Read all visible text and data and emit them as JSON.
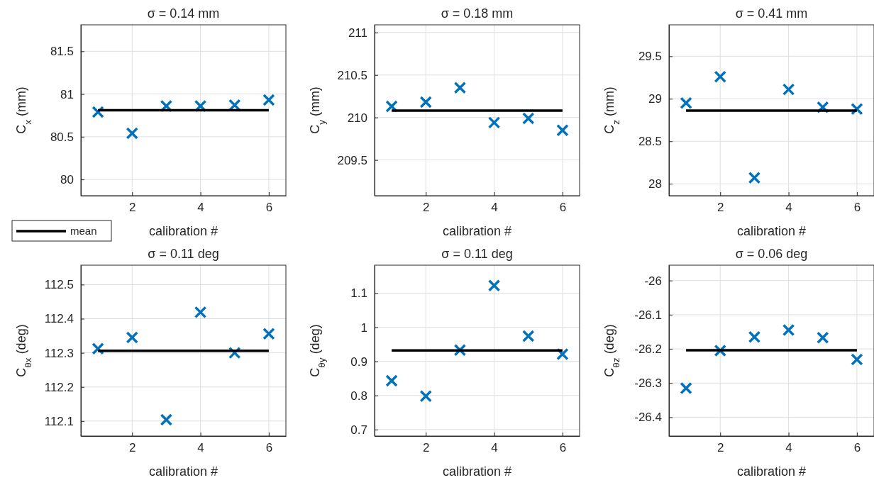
{
  "chart_data": [
    {
      "type": "scatter",
      "title": "σ = 0.14 mm",
      "xlabel": "calibration #",
      "ylabel": "C$_{x}$ (mm)",
      "x": [
        1,
        2,
        3,
        4,
        5,
        6
      ],
      "xlim": [
        0.5,
        6.5
      ],
      "xticks": [
        2,
        4,
        6
      ],
      "ylim": [
        79.81,
        81.81
      ],
      "yticks": [
        80,
        80.5,
        81,
        81.5
      ],
      "grid": true,
      "legend": "bottom left",
      "series": [
        {
          "type": "scatter",
          "color": "#0072bd",
          "marker": "cross",
          "values": [
            80.79,
            80.54,
            80.86,
            80.86,
            80.87,
            80.93
          ]
        },
        {
          "type": "line",
          "name": "mean",
          "color": "#000000",
          "marker": "none",
          "values": [
            80.81,
            80.81,
            80.81,
            80.81,
            80.81,
            80.81
          ]
        }
      ]
    },
    {
      "type": "scatter",
      "title": "σ = 0.18 mm",
      "xlabel": "calibration #",
      "ylabel": "C$_{y}$ (mm)",
      "x": [
        1,
        2,
        3,
        4,
        5,
        6
      ],
      "xlim": [
        0.5,
        6.5
      ],
      "xticks": [
        2,
        4,
        6
      ],
      "ylim": [
        209.08,
        211.09
      ],
      "yticks": [
        209.5,
        210,
        210.5,
        211
      ],
      "grid": true,
      "series": [
        {
          "type": "scatter",
          "color": "#0072bd",
          "marker": "cross",
          "values": [
            210.13,
            210.18,
            210.35,
            209.94,
            209.99,
            209.85
          ]
        },
        {
          "type": "line",
          "color": "#000000",
          "marker": "none",
          "values": [
            210.08,
            210.08,
            210.08,
            210.08,
            210.08,
            210.08
          ]
        }
      ]
    },
    {
      "type": "scatter",
      "title": "σ = 0.41 mm",
      "xlabel": "calibration #",
      "ylabel": "C$_{z}$ (mm)",
      "x": [
        1,
        2,
        3,
        4,
        5,
        6
      ],
      "xlim": [
        0.5,
        6.5
      ],
      "xticks": [
        2,
        4,
        6
      ],
      "ylim": [
        27.86,
        29.87
      ],
      "yticks": [
        28,
        28.5,
        29,
        29.5
      ],
      "grid": true,
      "series": [
        {
          "type": "scatter",
          "color": "#0072bd",
          "marker": "cross",
          "values": [
            28.95,
            29.26,
            28.07,
            29.11,
            28.9,
            28.88
          ]
        },
        {
          "type": "line",
          "color": "#000000",
          "marker": "none",
          "values": [
            28.86,
            28.86,
            28.86,
            28.86,
            28.86,
            28.86
          ]
        }
      ]
    },
    {
      "type": "scatter",
      "title": "σ = 0.11 deg",
      "xlabel": "calibration #",
      "ylabel": "C$_{θx}$ (deg)",
      "x": [
        1,
        2,
        3,
        4,
        5,
        6
      ],
      "xlim": [
        0.5,
        6.5
      ],
      "xticks": [
        2,
        4,
        6
      ],
      "ylim": [
        112.056,
        112.557
      ],
      "yticks": [
        112.1,
        112.2,
        112.3,
        112.4,
        112.5
      ],
      "grid": true,
      "series": [
        {
          "type": "scatter",
          "color": "#0072bd",
          "marker": "cross",
          "values": [
            112.312,
            112.345,
            112.104,
            112.419,
            112.3,
            112.356
          ]
        },
        {
          "type": "line",
          "color": "#000000",
          "marker": "none",
          "values": [
            112.306,
            112.306,
            112.306,
            112.306,
            112.306,
            112.306
          ]
        }
      ]
    },
    {
      "type": "scatter",
      "title": "σ = 0.11 deg",
      "xlabel": "calibration #",
      "ylabel": "C$_{θy}$ (deg)",
      "x": [
        1,
        2,
        3,
        4,
        5,
        6
      ],
      "xlim": [
        0.5,
        6.5
      ],
      "xticks": [
        2,
        4,
        6
      ],
      "ylim": [
        0.681,
        1.182
      ],
      "yticks": [
        0.7,
        0.8,
        0.9,
        1,
        1.1
      ],
      "grid": true,
      "series": [
        {
          "type": "scatter",
          "color": "#0072bd",
          "marker": "cross",
          "values": [
            0.843,
            0.798,
            0.933,
            1.122,
            0.974,
            0.921
          ]
        },
        {
          "type": "line",
          "color": "#000000",
          "marker": "none",
          "values": [
            0.932,
            0.932,
            0.932,
            0.932,
            0.932,
            0.932
          ]
        }
      ]
    },
    {
      "type": "scatter",
      "title": "σ = 0.06 deg",
      "xlabel": "calibration #",
      "ylabel": "C$_{θz}$ (deg)",
      "x": [
        1,
        2,
        3,
        4,
        5,
        6
      ],
      "xlim": [
        0.5,
        6.5
      ],
      "xticks": [
        2,
        4,
        6
      ],
      "ylim": [
        -26.455,
        -25.955
      ],
      "yticks": [
        -26.4,
        -26.3,
        -26.2,
        -26.1,
        -26
      ],
      "grid": true,
      "series": [
        {
          "type": "scatter",
          "color": "#0072bd",
          "marker": "cross",
          "values": [
            -26.315,
            -26.205,
            -26.165,
            -26.145,
            -26.167,
            -26.231
          ]
        },
        {
          "type": "line",
          "color": "#000000",
          "marker": "none",
          "values": [
            -26.204,
            -26.204,
            -26.204,
            -26.204,
            -26.204,
            -26.204
          ]
        }
      ]
    }
  ]
}
